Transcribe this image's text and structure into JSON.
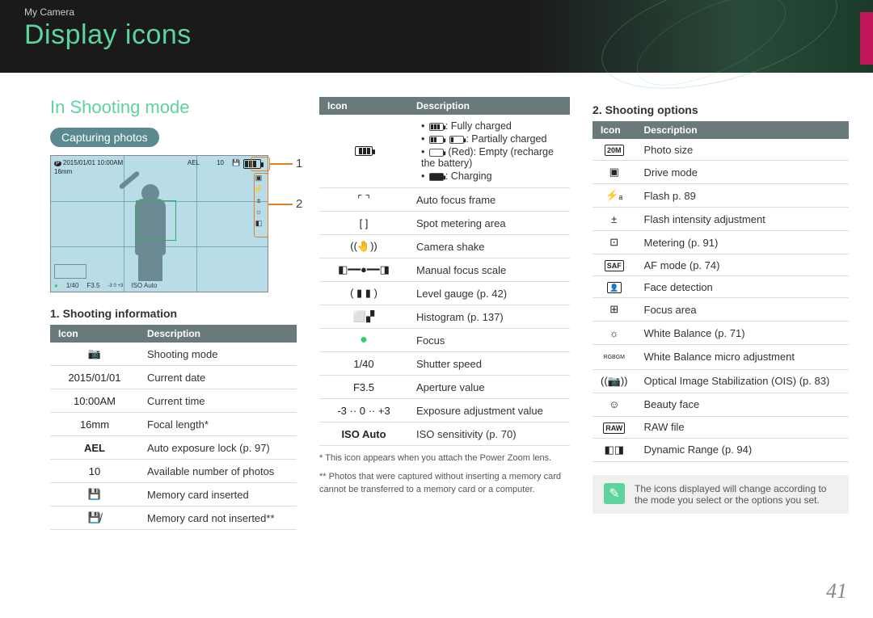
{
  "breadcrumb": "My Camera",
  "page_title": "Display icons",
  "section_title": "In Shooting mode",
  "pill_label": "Capturing photos",
  "page_number": "41",
  "colors": {
    "accent_green": "#5dd39e",
    "pill_bg": "#5a8a8f",
    "side_tab": "#c2185b",
    "table_header_bg": "#6a7a7a",
    "callout": "#e67e22",
    "lcd_bg": "#b8dde8"
  },
  "lcd": {
    "top_left": "2015/01/01 10:00AM",
    "focal": "16mm",
    "ael": "AEL",
    "shots": "10",
    "bottom_shutter": "1/40",
    "bottom_aperture": "F3.5",
    "bottom_ev": "-3   0   +3",
    "bottom_iso": "ISO Auto",
    "callouts": {
      "c1": "1",
      "c2": "2"
    }
  },
  "table_headers": {
    "icon": "Icon",
    "description": "Description"
  },
  "subheads": {
    "shooting_info": "1. Shooting information",
    "shooting_options": "2. Shooting options"
  },
  "shooting_info_rows": [
    {
      "icon_text": "📷",
      "icon_name": "camera-icon",
      "desc": "Shooting mode"
    },
    {
      "icon_text": "2015/01/01",
      "icon_name": "date-text",
      "desc": "Current date"
    },
    {
      "icon_text": "10:00AM",
      "icon_name": "time-text",
      "desc": "Current time"
    },
    {
      "icon_text": "16mm",
      "icon_name": "focal-length-text",
      "desc": "Focal length*"
    },
    {
      "icon_text": "AEL",
      "icon_name": "ael-icon",
      "desc": "Auto exposure lock (p. 97)"
    },
    {
      "icon_text": "10",
      "icon_name": "shots-remaining-text",
      "desc": "Available number of photos"
    },
    {
      "icon_text": "💾",
      "icon_name": "memory-card-icon",
      "desc": "Memory card inserted"
    },
    {
      "icon_text": "💾̸",
      "icon_name": "no-memory-card-icon",
      "desc": "Memory card not inserted**"
    }
  ],
  "battery_cell": {
    "full": ": Fully charged",
    "partial": ": Partially charged",
    "empty": "(Red): Empty (recharge the battery)",
    "charging": ": Charging"
  },
  "col2_rows": [
    {
      "icon_text": "⌜ ⌝",
      "icon_name": "af-frame-icon",
      "desc": "Auto focus frame"
    },
    {
      "icon_text": "[  ]",
      "icon_name": "spot-meter-icon",
      "desc": "Spot metering area"
    },
    {
      "icon_text": "((🤚))",
      "icon_name": "camera-shake-icon",
      "desc": "Camera shake"
    },
    {
      "icon_text": "◧━━●━━◨",
      "icon_name": "mf-scale-icon",
      "desc": "Manual focus scale"
    },
    {
      "icon_text": "( ▮ ▮ )",
      "icon_name": "level-gauge-icon",
      "desc": "Level gauge (p. 42)"
    },
    {
      "icon_text": "⬜▞",
      "icon_name": "histogram-icon",
      "desc": "Histogram (p. 137)"
    },
    {
      "icon_text": "●",
      "icon_name": "focus-dot-icon",
      "green": true,
      "desc": "Focus"
    },
    {
      "icon_text": "1/40",
      "icon_name": "shutter-speed-text",
      "desc": "Shutter speed"
    },
    {
      "icon_text": "F3.5",
      "icon_name": "aperture-text",
      "desc": "Aperture value"
    },
    {
      "icon_text": "-3 ·· 0 ·· +3",
      "icon_name": "ev-scale-icon",
      "desc": "Exposure adjustment value"
    },
    {
      "icon_text": "ISO Auto",
      "icon_name": "iso-text",
      "bold": true,
      "desc": "ISO sensitivity (p. 70)"
    }
  ],
  "footnotes": {
    "f1": "* This icon appears when you attach the Power Zoom lens.",
    "f2": "** Photos that were captured without inserting a memory card cannot be transferred to a memory card or a computer."
  },
  "shooting_options_rows": [
    {
      "icon_text": "20M",
      "box": true,
      "icon_name": "photo-size-icon",
      "desc": "Photo size"
    },
    {
      "icon_text": "▣",
      "icon_name": "drive-mode-icon",
      "desc": "Drive mode"
    },
    {
      "icon_text": "⚡ₐ",
      "icon_name": "flash-icon",
      "desc": "Flash p. 89"
    },
    {
      "icon_text": "±",
      "icon_name": "flash-intensity-icon",
      "desc": "Flash intensity adjustment"
    },
    {
      "icon_text": "⊡",
      "icon_name": "metering-icon",
      "desc": "Metering (p. 91)"
    },
    {
      "icon_text": "SAF",
      "box": true,
      "icon_name": "af-mode-icon",
      "desc": "AF mode (p. 74)"
    },
    {
      "icon_text": "👤",
      "box": true,
      "icon_name": "face-detection-icon",
      "desc": "Face detection"
    },
    {
      "icon_text": "⊞",
      "icon_name": "focus-area-icon",
      "desc": "Focus area"
    },
    {
      "icon_text": "☼",
      "icon_name": "white-balance-icon",
      "desc": "White Balance (p. 71)"
    },
    {
      "icon_text": "RGBGM",
      "icon_name": "wb-micro-icon",
      "small": true,
      "desc": "White Balance micro adjustment"
    },
    {
      "icon_text": "((📷))",
      "icon_name": "ois-icon",
      "desc": "Optical Image Stabilization (OIS) (p. 83)"
    },
    {
      "icon_text": "☺",
      "icon_name": "beauty-face-icon",
      "desc": "Beauty face"
    },
    {
      "icon_text": "RAW",
      "box": true,
      "icon_name": "raw-icon",
      "desc": "RAW file"
    },
    {
      "icon_text": "◧◨",
      "icon_name": "dynamic-range-icon",
      "desc": "Dynamic Range (p. 94)"
    }
  ],
  "note_text": "The icons displayed will change according to the mode you select or the options you set."
}
